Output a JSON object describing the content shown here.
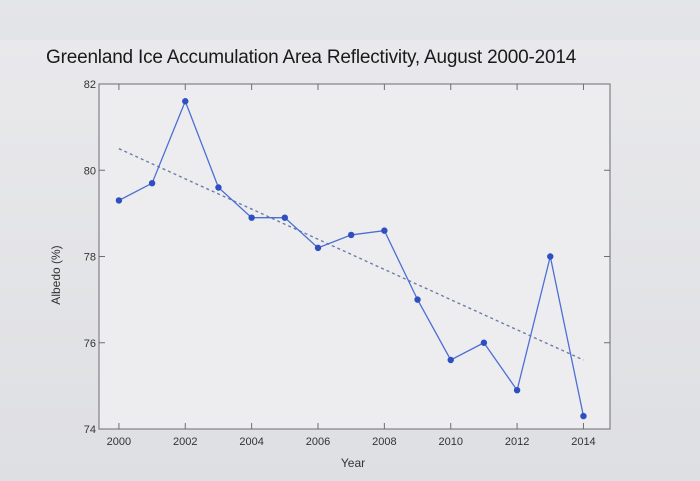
{
  "chart_data": {
    "type": "line",
    "title": "Greenland Ice Accumulation Area Reflectivity, August 2000-2014",
    "xlabel": "Year",
    "ylabel": "Albedo (%)",
    "xlim": [
      1999.4,
      2014.8
    ],
    "ylim": [
      74,
      82
    ],
    "xticks": [
      2000,
      2002,
      2004,
      2006,
      2008,
      2010,
      2012,
      2014
    ],
    "yticks": [
      74,
      76,
      78,
      80,
      82
    ],
    "grid": false,
    "series": [
      {
        "x": [
          2000,
          2001,
          2002,
          2003,
          2004,
          2005,
          2006,
          2007,
          2008,
          2009,
          2010,
          2011,
          2012,
          2013,
          2014
        ],
        "values": [
          79.3,
          79.7,
          81.6,
          79.6,
          78.9,
          78.9,
          78.2,
          78.5,
          78.6,
          77.0,
          75.6,
          76.0,
          74.9,
          78.0,
          74.3
        ],
        "color": "#4d6fd4"
      }
    ],
    "trend_line": {
      "x": [
        2000,
        2014
      ],
      "values": [
        80.5,
        75.6
      ],
      "style": "dotted",
      "color": "#6c7ea8"
    }
  }
}
